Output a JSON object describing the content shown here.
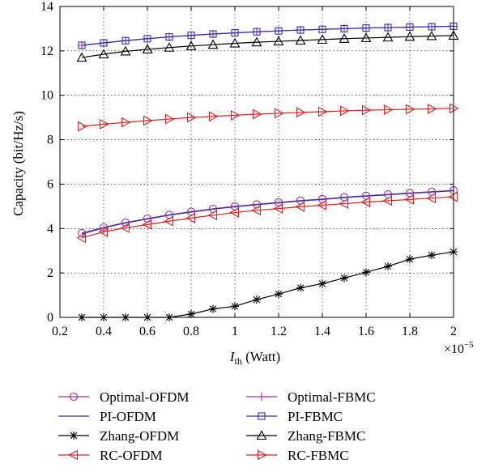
{
  "chart_data": {
    "type": "line",
    "xlabel_main": "I",
    "xlabel_sub": "th",
    "xlabel_unit": " (Watt)",
    "ylabel": "Capacity (bit/Hz/s)",
    "x_multiplier_base": "×10",
    "x_multiplier_exp": "−5",
    "xlim": [
      0.2,
      2.0
    ],
    "ylim": [
      0,
      14
    ],
    "x_ticks": [
      "0.2",
      "0.4",
      "0.6",
      "0.8",
      "1",
      "1.2",
      "1.4",
      "1.6",
      "1.8",
      "2"
    ],
    "y_ticks": [
      "0",
      "2",
      "4",
      "6",
      "8",
      "10",
      "12",
      "14"
    ],
    "grid": true,
    "legend_position": "bottom",
    "x": [
      0.3,
      0.4,
      0.5,
      0.6,
      0.7,
      0.8,
      0.9,
      1.0,
      1.1,
      1.2,
      1.3,
      1.4,
      1.5,
      1.6,
      1.7,
      1.8,
      1.9,
      2.0
    ],
    "series": [
      {
        "name": "Optimal-OFDM",
        "color": "#a0309a",
        "marker": "circle",
        "values": [
          3.8,
          4.05,
          4.27,
          4.45,
          4.62,
          4.76,
          4.89,
          5.0,
          5.09,
          5.18,
          5.26,
          5.33,
          5.41,
          5.48,
          5.54,
          5.6,
          5.66,
          5.72
        ]
      },
      {
        "name": "Optimal-FBMC",
        "color": "#a0309a",
        "marker": "plus",
        "values": [
          12.25,
          12.36,
          12.46,
          12.55,
          12.63,
          12.7,
          12.76,
          12.81,
          12.86,
          12.9,
          12.94,
          12.97,
          13.0,
          13.03,
          13.05,
          13.07,
          13.09,
          13.11
        ]
      },
      {
        "name": "PI-OFDM",
        "color": "#3030b0",
        "marker": "none",
        "values": [
          3.76,
          4.03,
          4.25,
          4.43,
          4.6,
          4.74,
          4.87,
          4.98,
          5.07,
          5.16,
          5.24,
          5.31,
          5.39,
          5.46,
          5.52,
          5.58,
          5.64,
          5.7
        ]
      },
      {
        "name": "PI-FBMC",
        "color": "#3030b0",
        "marker": "square",
        "values": [
          12.25,
          12.36,
          12.46,
          12.55,
          12.63,
          12.7,
          12.76,
          12.81,
          12.86,
          12.9,
          12.94,
          12.97,
          13.0,
          13.03,
          13.05,
          13.07,
          13.09,
          13.11
        ]
      },
      {
        "name": "Zhang-OFDM",
        "color": "#000000",
        "marker": "star",
        "values": [
          0.0,
          0.0,
          0.0,
          0.0,
          0.0,
          0.15,
          0.38,
          0.5,
          0.8,
          1.05,
          1.33,
          1.52,
          1.77,
          2.03,
          2.3,
          2.62,
          2.8,
          2.95
        ]
      },
      {
        "name": "Zhang-FBMC",
        "color": "#000000",
        "marker": "triangle-up",
        "values": [
          11.7,
          11.85,
          11.98,
          12.07,
          12.15,
          12.22,
          12.28,
          12.34,
          12.39,
          12.43,
          12.47,
          12.51,
          12.55,
          12.58,
          12.61,
          12.64,
          12.67,
          12.69
        ]
      },
      {
        "name": "RC-OFDM",
        "color": "#e02020",
        "marker": "triangle-left",
        "values": [
          3.58,
          3.85,
          4.03,
          4.18,
          4.33,
          4.47,
          4.6,
          4.72,
          4.82,
          4.9,
          4.98,
          5.05,
          5.12,
          5.19,
          5.25,
          5.31,
          5.37,
          5.43
        ]
      },
      {
        "name": "RC-FBMC",
        "color": "#e02020",
        "marker": "triangle-right",
        "values": [
          8.6,
          8.7,
          8.78,
          8.86,
          8.93,
          9.0,
          9.05,
          9.1,
          9.15,
          9.19,
          9.23,
          9.26,
          9.3,
          9.33,
          9.35,
          9.37,
          9.39,
          9.41
        ]
      }
    ],
    "legend_layout": [
      [
        "Optimal-OFDM",
        "Optimal-FBMC"
      ],
      [
        "PI-OFDM",
        "PI-FBMC"
      ],
      [
        "Zhang-OFDM",
        "Zhang-FBMC"
      ],
      [
        "RC-OFDM",
        "RC-FBMC"
      ]
    ]
  }
}
